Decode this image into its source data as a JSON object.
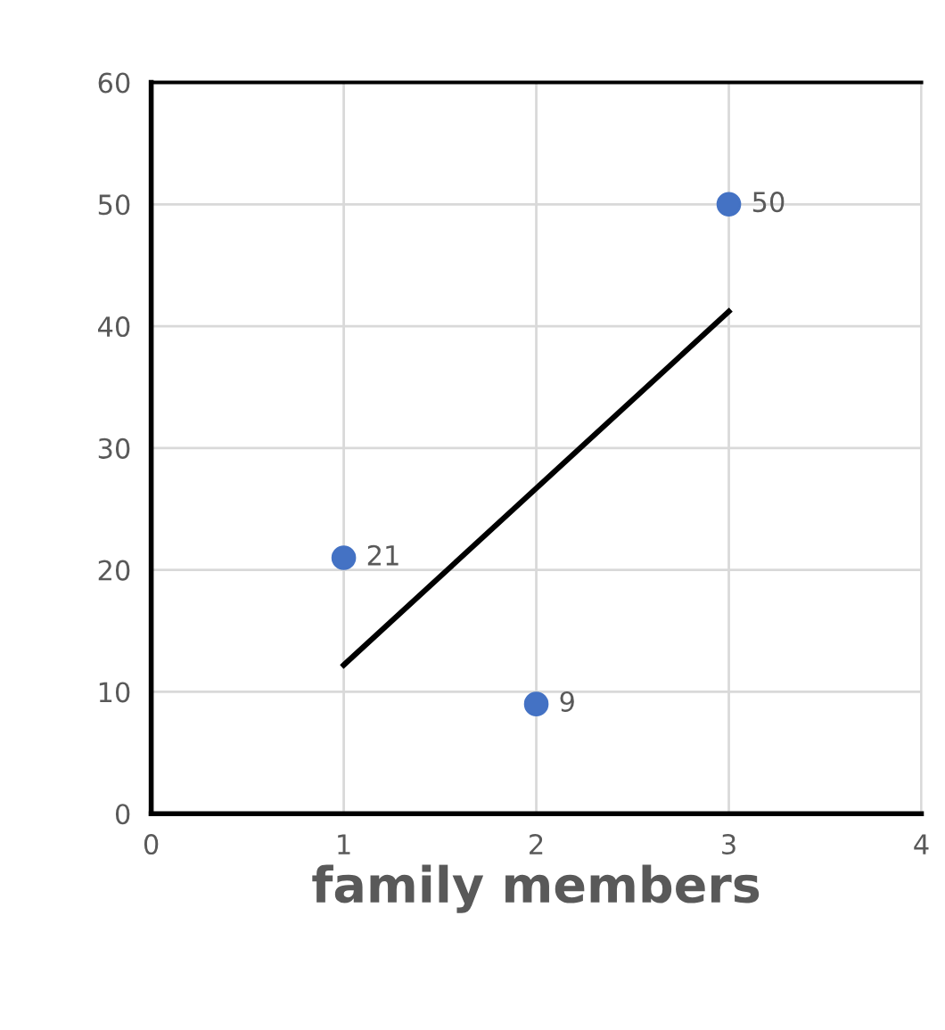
{
  "chart_data": {
    "type": "scatter",
    "xlabel": "family members",
    "series": [
      {
        "color": "#4472c4",
        "x": [
          1,
          2,
          3
        ],
        "values": [
          21,
          9,
          50
        ],
        "value_labels": [
          "21",
          "9",
          "50"
        ],
        "marker": "circle"
      },
      {
        "type": "line",
        "color": "#000000",
        "x": [
          1,
          3
        ],
        "values": [
          12.2,
          41.2
        ],
        "marker": "none"
      }
    ],
    "xlim": [
      0,
      4
    ],
    "xticks": [
      0,
      1,
      2,
      3,
      4
    ],
    "ylim": [
      0,
      60
    ],
    "yticks": [
      0,
      10,
      20,
      30,
      40,
      50,
      60
    ],
    "grid": true
  }
}
